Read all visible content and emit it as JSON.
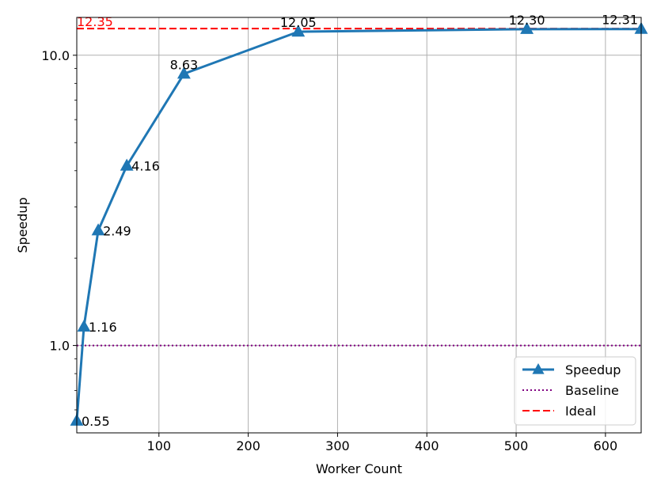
{
  "chart_data": {
    "type": "line",
    "xlabel": "Worker Count",
    "ylabel": "Speedup",
    "x_scale": "linear",
    "y_scale": "log",
    "xlim": [
      8,
      640
    ],
    "ylim": [
      0.5,
      13.5
    ],
    "x_ticks": [
      100,
      200,
      300,
      400,
      500,
      600
    ],
    "x_tick_labels": [
      "100",
      "200",
      "300",
      "400",
      "500",
      "600"
    ],
    "y_ticks": [
      1.0,
      10.0
    ],
    "y_tick_labels": [
      "1.0",
      "10.0"
    ],
    "grid": true,
    "legend_position": "lower right",
    "series": [
      {
        "name": "Speedup",
        "x": [
          8,
          16,
          32,
          64,
          128,
          256,
          512,
          640
        ],
        "values": [
          0.55,
          1.16,
          2.49,
          4.16,
          8.63,
          12.05,
          12.3,
          12.31
        ],
        "labels": [
          "0.55",
          "1.16",
          "2.49",
          "4.16",
          "8.63",
          "12.05",
          "12.30",
          "12.31"
        ],
        "color": "#1f77b4",
        "marker": "triangle-up"
      }
    ],
    "reference_lines": [
      {
        "name": "Baseline",
        "y": 1.0,
        "color": "#800080",
        "style": "dotted"
      },
      {
        "name": "Ideal",
        "y": 12.35,
        "label": "12.35",
        "color": "#ff0000",
        "style": "dashed"
      }
    ]
  }
}
